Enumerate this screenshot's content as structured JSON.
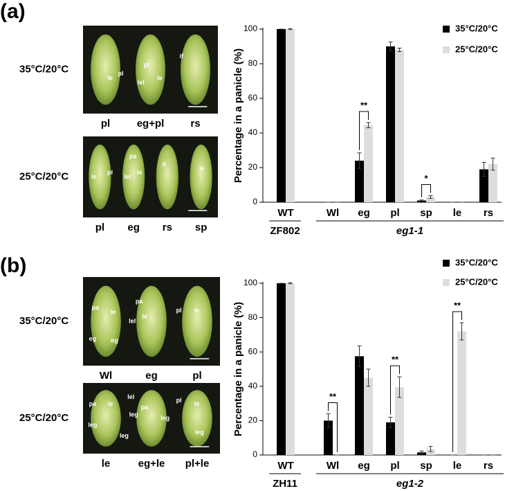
{
  "panels": [
    {
      "label": "(a)",
      "rows": [
        {
          "condition": "35°C/20°C",
          "labels": [
            "pl",
            "eg+pl",
            "rs"
          ],
          "annotations": [
            "le",
            "pl",
            "pl",
            "lel",
            "le",
            "if"
          ]
        },
        {
          "condition": "25°C/20°C",
          "labels": [
            "pl",
            "eg",
            "rs",
            "sp"
          ],
          "annotations": [
            "le",
            "pl",
            "pa",
            "lel",
            "le",
            "if",
            "le"
          ]
        }
      ]
    },
    {
      "label": "(b)",
      "rows": [
        {
          "condition": "35°C/20°C",
          "labels": [
            "Wl",
            "eg",
            "pl"
          ],
          "annotations": [
            "pa",
            "le",
            "eg",
            "eg",
            "pa",
            "lel",
            "le",
            "pl",
            "le"
          ]
        },
        {
          "condition": "25°C/20°C",
          "labels": [
            "le",
            "eg+le",
            "pl+le"
          ],
          "annotations": [
            "pa",
            "le",
            "leg",
            "lel",
            "pa",
            "leg",
            "leg",
            "pl",
            "le",
            "leg",
            "leg"
          ]
        }
      ]
    }
  ],
  "chart_data": [
    {
      "type": "bar",
      "y_label": "Percentage in a panicle (%)",
      "categories": [
        "WT",
        "Wl",
        "eg",
        "pl",
        "sp",
        "le",
        "rs"
      ],
      "series": [
        {
          "name": "35°C/20°C",
          "color": "#000000",
          "values": [
            100,
            0,
            24,
            90,
            1,
            0,
            19
          ],
          "errors": [
            0,
            0,
            4.5,
            2.5,
            0.3,
            0,
            4
          ]
        },
        {
          "name": "25°C/20°C",
          "color": "#dcdedb",
          "values": [
            100,
            0,
            44.5,
            88,
            3,
            0,
            22
          ],
          "errors": [
            0.3,
            0,
            1.5,
            1,
            0.8,
            0,
            3.5
          ]
        }
      ],
      "ylim": [
        0,
        100
      ],
      "yticks": [
        0,
        20,
        40,
        60,
        80,
        100
      ],
      "groups": [
        {
          "label": "ZF802",
          "categories": [
            "WT"
          ]
        },
        {
          "label": "eg1-1",
          "categories": [
            "Wl",
            "eg",
            "pl",
            "sp",
            "le",
            "rs"
          ]
        }
      ],
      "significance": [
        {
          "category": "eg",
          "label": "**"
        },
        {
          "category": "sp",
          "label": "*"
        }
      ]
    },
    {
      "type": "bar",
      "y_label": "Percentage in a panicle (%)",
      "categories": [
        "WT",
        "Wl",
        "eg",
        "pl",
        "sp",
        "le",
        "rs"
      ],
      "series": [
        {
          "name": "35°C/20°C",
          "color": "#000000",
          "values": [
            100,
            20,
            57.5,
            19,
            1.5,
            0,
            0
          ],
          "errors": [
            0,
            4,
            6,
            3,
            0.8,
            0,
            0
          ]
        },
        {
          "name": "25°C/20°C",
          "color": "#dcdedb",
          "values": [
            100,
            0,
            45,
            39.5,
            3.5,
            72,
            0
          ],
          "errors": [
            0.3,
            0,
            5,
            6,
            1.5,
            5,
            0
          ]
        }
      ],
      "ylim": [
        0,
        100
      ],
      "yticks": [
        0,
        20,
        40,
        60,
        80,
        100
      ],
      "groups": [
        {
          "label": "ZH11",
          "categories": [
            "WT"
          ]
        },
        {
          "label": "eg1-2",
          "categories": [
            "Wl",
            "eg",
            "pl",
            "sp",
            "le",
            "rs"
          ]
        }
      ],
      "significance": [
        {
          "category": "Wl",
          "label": "**"
        },
        {
          "category": "pl",
          "label": "**"
        },
        {
          "category": "le",
          "label": "**"
        }
      ]
    }
  ]
}
